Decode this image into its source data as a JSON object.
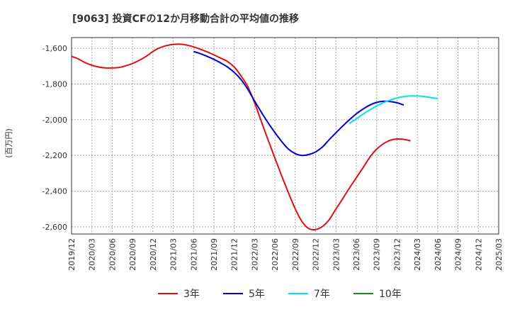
{
  "chart_data": {
    "type": "line",
    "title": "[9063]  投資CFの12か月移動合計の平均値の推移",
    "ylabel": "(百万円)",
    "xlabel": "",
    "ylim": [
      -2640,
      -1540
    ],
    "yticks": [
      -1600,
      -1800,
      -2000,
      -2200,
      -2400,
      -2600
    ],
    "ytick_labels": [
      "-1,600",
      "-1,800",
      "-2,000",
      "-2,200",
      "-2,400",
      "-2,600"
    ],
    "xlim": [
      "2019-12",
      "2025-03"
    ],
    "xtick_labels": [
      "2019/12",
      "2020/03",
      "2020/06",
      "2020/09",
      "2020/12",
      "2021/03",
      "2021/06",
      "2021/09",
      "2021/12",
      "2022/03",
      "2022/06",
      "2022/09",
      "2022/12",
      "2023/03",
      "2023/06",
      "2023/09",
      "2023/12",
      "2024/03",
      "2024/06",
      "2024/09",
      "2024/12",
      "2025/03"
    ],
    "grid": true,
    "legend_position": "bottom",
    "series": [
      {
        "name": "3年",
        "color": "#dd1111",
        "points": [
          [
            "2019-12",
            -1645
          ],
          [
            "2020-01",
            -1660
          ],
          [
            "2020-02",
            -1680
          ],
          [
            "2020-03",
            -1695
          ],
          [
            "2020-04",
            -1705
          ],
          [
            "2020-05",
            -1710
          ],
          [
            "2020-06",
            -1710
          ],
          [
            "2020-07",
            -1707
          ],
          [
            "2020-08",
            -1698
          ],
          [
            "2020-09",
            -1685
          ],
          [
            "2020-10",
            -1667
          ],
          [
            "2020-11",
            -1645
          ],
          [
            "2020-12",
            -1618
          ],
          [
            "2021-01",
            -1597
          ],
          [
            "2021-02",
            -1585
          ],
          [
            "2021-03",
            -1578
          ],
          [
            "2021-04",
            -1577
          ],
          [
            "2021-05",
            -1582
          ],
          [
            "2021-06",
            -1592
          ],
          [
            "2021-07",
            -1605
          ],
          [
            "2021-08",
            -1620
          ],
          [
            "2021-09",
            -1637
          ],
          [
            "2021-10",
            -1655
          ],
          [
            "2021-11",
            -1674
          ],
          [
            "2021-12",
            -1705
          ],
          [
            "2022-01",
            -1755
          ],
          [
            "2022-02",
            -1815
          ],
          [
            "2022-03",
            -1905
          ],
          [
            "2022-04",
            -2010
          ],
          [
            "2022-05",
            -2115
          ],
          [
            "2022-06",
            -2215
          ],
          [
            "2022-07",
            -2315
          ],
          [
            "2022-08",
            -2410
          ],
          [
            "2022-09",
            -2500
          ],
          [
            "2022-10",
            -2570
          ],
          [
            "2022-11",
            -2610
          ],
          [
            "2022-12",
            -2615
          ],
          [
            "2023-01",
            -2598
          ],
          [
            "2023-02",
            -2560
          ],
          [
            "2023-03",
            -2500
          ],
          [
            "2023-04",
            -2442
          ],
          [
            "2023-05",
            -2382
          ],
          [
            "2023-06",
            -2325
          ],
          [
            "2023-07",
            -2268
          ],
          [
            "2023-08",
            -2210
          ],
          [
            "2023-09",
            -2165
          ],
          [
            "2023-10",
            -2135
          ],
          [
            "2023-11",
            -2115
          ],
          [
            "2023-12",
            -2108
          ],
          [
            "2024-01",
            -2110
          ],
          [
            "2024-02",
            -2118
          ]
        ]
      },
      {
        "name": "5年",
        "color": "#0000cc",
        "points": [
          [
            "2021-06",
            -1618
          ],
          [
            "2021-07",
            -1630
          ],
          [
            "2021-08",
            -1645
          ],
          [
            "2021-09",
            -1662
          ],
          [
            "2021-10",
            -1682
          ],
          [
            "2021-11",
            -1705
          ],
          [
            "2021-12",
            -1735
          ],
          [
            "2022-01",
            -1775
          ],
          [
            "2022-02",
            -1830
          ],
          [
            "2022-03",
            -1895
          ],
          [
            "2022-04",
            -1958
          ],
          [
            "2022-05",
            -2018
          ],
          [
            "2022-06",
            -2072
          ],
          [
            "2022-07",
            -2122
          ],
          [
            "2022-08",
            -2165
          ],
          [
            "2022-09",
            -2190
          ],
          [
            "2022-10",
            -2200
          ],
          [
            "2022-11",
            -2195
          ],
          [
            "2022-12",
            -2180
          ],
          [
            "2023-01",
            -2153
          ],
          [
            "2023-02",
            -2112
          ],
          [
            "2023-03",
            -2073
          ],
          [
            "2023-04",
            -2035
          ],
          [
            "2023-05",
            -2000
          ],
          [
            "2023-06",
            -1967
          ],
          [
            "2023-07",
            -1940
          ],
          [
            "2023-08",
            -1918
          ],
          [
            "2023-09",
            -1903
          ],
          [
            "2023-10",
            -1897
          ],
          [
            "2023-11",
            -1898
          ],
          [
            "2023-12",
            -1905
          ],
          [
            "2024-01",
            -1918
          ]
        ]
      },
      {
        "name": "7年",
        "color": "#00e5e5",
        "points": [
          [
            "2023-05",
            -2022
          ],
          [
            "2023-06",
            -1995
          ],
          [
            "2023-07",
            -1968
          ],
          [
            "2023-08",
            -1945
          ],
          [
            "2023-09",
            -1923
          ],
          [
            "2023-10",
            -1905
          ],
          [
            "2023-11",
            -1890
          ],
          [
            "2023-12",
            -1878
          ],
          [
            "2024-01",
            -1870
          ],
          [
            "2024-02",
            -1867
          ],
          [
            "2024-03",
            -1867
          ],
          [
            "2024-04",
            -1870
          ],
          [
            "2024-05",
            -1876
          ],
          [
            "2024-06",
            -1882
          ]
        ]
      },
      {
        "name": "10年",
        "color": "#228b22",
        "points": []
      }
    ]
  }
}
